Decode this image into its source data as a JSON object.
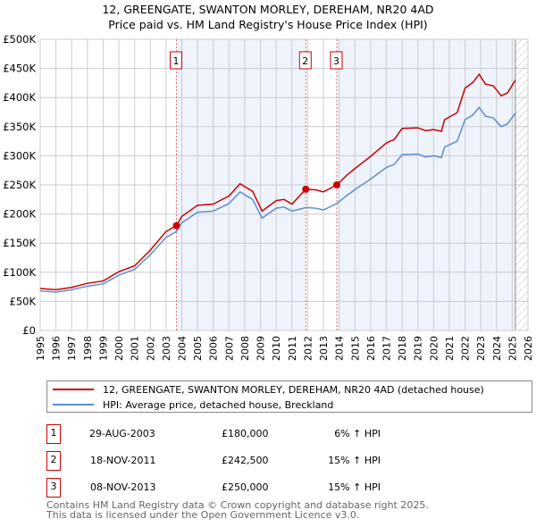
{
  "header": {
    "title": "12, GREENGATE, SWANTON MORLEY, DEREHAM, NR20 4AD",
    "subtitle": "Price paid vs. HM Land Registry's House Price Index (HPI)"
  },
  "chart_data": {
    "type": "line",
    "title": "12, GREENGATE, SWANTON MORLEY, DEREHAM, NR20 4AD",
    "subtitle": "Price paid vs. HM Land Registry's House Price Index (HPI)",
    "xlim": [
      1995,
      2026
    ],
    "ylim": [
      0,
      500
    ],
    "y_ticks": [
      0,
      50,
      100,
      150,
      200,
      250,
      300,
      350,
      400,
      450,
      500
    ],
    "y_tick_labels": [
      "£0",
      "£50K",
      "£100K",
      "£150K",
      "£200K",
      "£250K",
      "£300K",
      "£350K",
      "£400K",
      "£450K",
      "£500K"
    ],
    "x_ticks": [
      1995,
      1996,
      1997,
      1998,
      1999,
      2000,
      2001,
      2002,
      2003,
      2004,
      2005,
      2006,
      2007,
      2008,
      2009,
      2010,
      2011,
      2012,
      2013,
      2014,
      2015,
      2016,
      2017,
      2018,
      2019,
      2020,
      2021,
      2022,
      2023,
      2024,
      2025,
      2026
    ],
    "grid": true,
    "colors": {
      "property": "#cc0000",
      "hpi": "#5b8fd0",
      "shade": "#eef3fc"
    },
    "x": [
      1995,
      1996,
      1997,
      1998,
      1999,
      2000,
      2001,
      2002,
      2003,
      2003.66,
      2004,
      2005,
      2006,
      2007,
      2007.7,
      2008.5,
      2009.1,
      2010,
      2010.5,
      2011,
      2011.88,
      2012.5,
      2013,
      2013.85,
      2014.5,
      2015,
      2016,
      2017,
      2017.5,
      2018,
      2019,
      2019.5,
      2020,
      2020.5,
      2020.7,
      2021.5,
      2022,
      2022.5,
      2022.9,
      2023.3,
      2023.8,
      2024.3,
      2024.7,
      2025.2
    ],
    "series": [
      {
        "name": "12, GREENGATE, SWANTON MORLEY, DEREHAM, NR20 4AD (detached house)",
        "key": "property",
        "values": [
          72,
          70,
          74,
          81,
          85,
          101,
          111,
          138,
          170,
          180,
          196,
          215,
          217,
          231,
          252,
          239,
          205,
          223,
          225,
          217,
          242.5,
          241.5,
          238,
          250,
          267,
          278,
          299,
          322,
          328,
          347,
          348,
          343,
          345,
          342,
          362,
          374,
          416,
          426,
          440,
          423,
          420,
          403,
          408,
          430
        ]
      },
      {
        "name": "HPI: Average price, detached house, Breckland",
        "key": "hpi",
        "values": [
          68,
          66,
          70,
          76,
          80,
          95,
          105,
          130,
          160,
          170,
          185,
          203,
          205,
          218,
          238,
          225,
          193,
          210,
          212,
          205,
          211,
          210,
          207,
          218,
          232,
          242,
          260,
          280,
          285,
          302,
          303,
          298,
          300,
          297,
          315,
          325,
          362,
          370,
          383,
          368,
          365,
          350,
          355,
          373
        ]
      }
    ],
    "sales": [
      {
        "label": "1",
        "x": 2003.66,
        "value": 180
      },
      {
        "label": "2",
        "x": 2011.88,
        "value": 242.5
      },
      {
        "label": "3",
        "x": 2013.85,
        "value": 250
      }
    ],
    "forecast_start": 2025.2
  },
  "legend": {
    "property": "12, GREENGATE, SWANTON MORLEY, DEREHAM, NR20 4AD (detached house)",
    "hpi": "HPI: Average price, detached house, Breckland"
  },
  "transactions": [
    {
      "num": "1",
      "date": "29-AUG-2003",
      "price": "£180,000",
      "hpi": "6% ↑ HPI"
    },
    {
      "num": "2",
      "date": "18-NOV-2011",
      "price": "£242,500",
      "hpi": "15% ↑ HPI"
    },
    {
      "num": "3",
      "date": "08-NOV-2013",
      "price": "£250,000",
      "hpi": "15% ↑ HPI"
    }
  ],
  "footer": {
    "line1": "Contains HM Land Registry data © Crown copyright and database right 2025.",
    "line2": "This data is licensed under the Open Government Licence v3.0."
  }
}
